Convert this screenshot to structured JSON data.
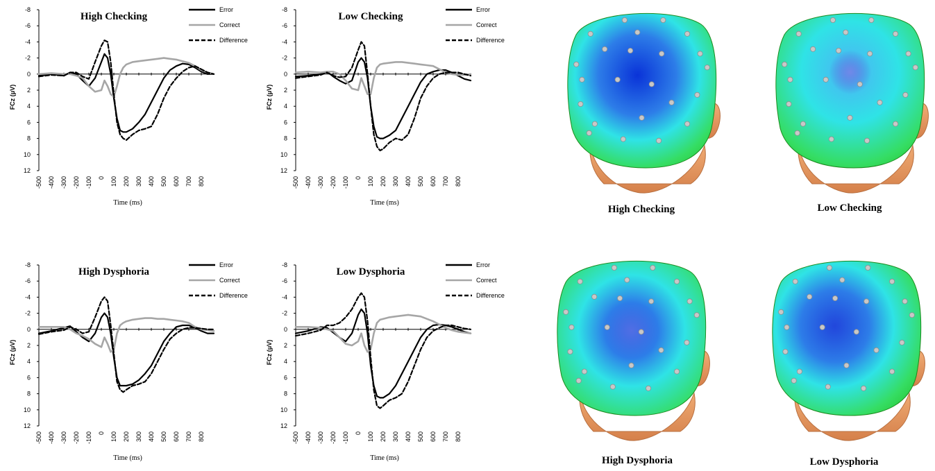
{
  "chart_data": [
    {
      "type": "line",
      "title": "High Checking",
      "xlabel": "Time (ms)",
      "ylabel": "FCz (μV)",
      "xlim": [
        -500,
        900
      ],
      "ylim": [
        -8,
        12
      ],
      "y_inverted": true,
      "x_ticks": [
        -500,
        -400,
        -300,
        -200,
        -100,
        0,
        100,
        200,
        300,
        400,
        500,
        600,
        700,
        800
      ],
      "y_ticks": [
        -8,
        -6,
        -4,
        -2,
        0,
        2,
        4,
        6,
        8,
        10,
        12
      ],
      "legend": "top-right",
      "series": [
        {
          "name": "Error",
          "color": "#000000",
          "style": "solid",
          "x": [
            -500,
            -400,
            -300,
            -250,
            -200,
            -150,
            -100,
            -50,
            0,
            25,
            50,
            75,
            100,
            125,
            150,
            175,
            200,
            250,
            300,
            350,
            400,
            450,
            500,
            550,
            600,
            650,
            700,
            750,
            800,
            850,
            900
          ],
          "y": [
            0.2,
            0,
            0.2,
            -0.2,
            0,
            0.8,
            1.5,
            0.5,
            -1.5,
            -2.5,
            -2,
            0,
            3,
            5.5,
            7,
            7.2,
            7.2,
            6.8,
            6,
            5,
            3.5,
            2,
            0.5,
            -0.5,
            -1,
            -1.3,
            -1.2,
            -0.8,
            -0.3,
            0,
            0
          ]
        },
        {
          "name": "Correct",
          "color": "#a6a6a6",
          "style": "solid",
          "x": [
            -500,
            -400,
            -300,
            -250,
            -200,
            -150,
            -100,
            -50,
            0,
            25,
            50,
            75,
            100,
            125,
            150,
            175,
            200,
            250,
            300,
            350,
            400,
            450,
            500,
            550,
            600,
            650,
            700,
            750,
            800,
            850,
            900
          ],
          "y": [
            0,
            -0.1,
            0,
            0,
            0.2,
            0.5,
            1.5,
            2.2,
            2,
            0.8,
            1.5,
            2.5,
            2.8,
            1.5,
            0,
            -0.8,
            -1.2,
            -1.5,
            -1.6,
            -1.7,
            -1.8,
            -1.9,
            -2,
            -1.9,
            -1.8,
            -1.6,
            -1.4,
            -1,
            -0.5,
            -0.2,
            0
          ]
        },
        {
          "name": "Difference",
          "color": "#000000",
          "style": "dashed",
          "x": [
            -500,
            -400,
            -300,
            -250,
            -200,
            -150,
            -100,
            -50,
            0,
            25,
            50,
            75,
            100,
            125,
            150,
            175,
            200,
            250,
            300,
            350,
            400,
            450,
            500,
            550,
            600,
            650,
            700,
            750,
            800,
            850,
            900
          ],
          "y": [
            0.3,
            0.1,
            0.2,
            -0.2,
            -0.2,
            0.3,
            0.6,
            -1.5,
            -3.5,
            -4.2,
            -4,
            -1.5,
            2.5,
            6,
            7.5,
            8,
            8.2,
            7.5,
            7,
            6.8,
            6.5,
            5,
            3,
            1.5,
            0.5,
            -0.3,
            -0.8,
            -1,
            -0.6,
            -0.2,
            0
          ]
        }
      ]
    },
    {
      "type": "line",
      "title": "Low Checking",
      "xlabel": "Time (ms)",
      "ylabel": "FCz (μV)",
      "xlim": [
        -500,
        900
      ],
      "ylim": [
        -8,
        12
      ],
      "y_inverted": true,
      "x_ticks": [
        -500,
        -400,
        -300,
        -200,
        -100,
        0,
        100,
        200,
        300,
        400,
        500,
        600,
        700,
        800
      ],
      "y_ticks": [
        -8,
        -6,
        -4,
        -2,
        0,
        2,
        4,
        6,
        8,
        10,
        12
      ],
      "legend": "top-right",
      "series": [
        {
          "name": "Error",
          "color": "#000000",
          "style": "solid",
          "x": [
            -500,
            -400,
            -300,
            -250,
            -200,
            -150,
            -100,
            -50,
            0,
            25,
            50,
            75,
            100,
            125,
            150,
            175,
            200,
            250,
            300,
            350,
            400,
            450,
            500,
            550,
            600,
            650,
            700,
            750,
            800,
            850,
            900
          ],
          "y": [
            0.3,
            0.2,
            0,
            -0.3,
            0.3,
            0.8,
            1.2,
            0.8,
            -1.5,
            -2,
            -1.5,
            0.5,
            4,
            6.5,
            7.8,
            8,
            8,
            7.6,
            7,
            5.5,
            4,
            2.5,
            1,
            0,
            -0.3,
            -0.5,
            -0.5,
            -0.2,
            0.2,
            0.6,
            0.8
          ]
        },
        {
          "name": "Correct",
          "color": "#a6a6a6",
          "style": "solid",
          "x": [
            -500,
            -400,
            -300,
            -250,
            -200,
            -150,
            -100,
            -50,
            0,
            25,
            50,
            75,
            100,
            125,
            150,
            175,
            200,
            250,
            300,
            350,
            400,
            450,
            500,
            550,
            600,
            650,
            700,
            750,
            800,
            850,
            900
          ],
          "y": [
            -0.2,
            -0.3,
            -0.2,
            -0.3,
            -0.3,
            0,
            0.8,
            1.8,
            2,
            0.5,
            1.5,
            2.5,
            2.5,
            0.5,
            -0.8,
            -1.2,
            -1.3,
            -1.4,
            -1.5,
            -1.5,
            -1.4,
            -1.3,
            -1.2,
            -1.1,
            -1,
            -0.6,
            -0.2,
            0,
            0.1,
            0.1,
            0
          ]
        },
        {
          "name": "Difference",
          "color": "#000000",
          "style": "dashed",
          "x": [
            -500,
            -400,
            -300,
            -250,
            -200,
            -150,
            -100,
            -50,
            0,
            25,
            50,
            75,
            100,
            125,
            150,
            175,
            200,
            250,
            300,
            350,
            400,
            450,
            500,
            550,
            600,
            650,
            700,
            750,
            800,
            850,
            900
          ],
          "y": [
            0.5,
            0.3,
            0.1,
            -0.2,
            0.2,
            0.4,
            0.3,
            -0.8,
            -3,
            -4,
            -3.5,
            0,
            4,
            7.5,
            9,
            9.5,
            9.3,
            8.5,
            8,
            8.2,
            7.5,
            5.5,
            3,
            1.5,
            0.5,
            0,
            -0.2,
            -0.2,
            -0.2,
            0,
            0.2
          ]
        }
      ]
    },
    {
      "type": "line",
      "title": "High Dysphoria",
      "xlabel": "Time (ms)",
      "ylabel": "FCz (μV)",
      "xlim": [
        -500,
        900
      ],
      "ylim": [
        -8,
        12
      ],
      "y_inverted": true,
      "x_ticks": [
        -500,
        -400,
        -300,
        -200,
        -100,
        0,
        100,
        200,
        300,
        400,
        500,
        600,
        700,
        800
      ],
      "y_ticks": [
        -8,
        -6,
        -4,
        -2,
        0,
        2,
        4,
        6,
        8,
        10,
        12
      ],
      "legend": "top-right",
      "series": [
        {
          "name": "Error",
          "color": "#000000",
          "style": "solid",
          "x": [
            -500,
            -400,
            -300,
            -250,
            -200,
            -150,
            -100,
            -50,
            0,
            25,
            50,
            75,
            100,
            125,
            150,
            175,
            200,
            250,
            300,
            350,
            400,
            450,
            500,
            550,
            600,
            650,
            700,
            750,
            800,
            850,
            900
          ],
          "y": [
            0.5,
            0.2,
            -0.2,
            -0.4,
            0.3,
            1,
            1.5,
            0.5,
            -1.5,
            -2,
            -1.5,
            0.5,
            3.5,
            6,
            7,
            7,
            7,
            6.8,
            6.3,
            5.5,
            4.5,
            3,
            1.5,
            0.5,
            -0.3,
            -0.5,
            -0.5,
            -0.2,
            0.2,
            0.5,
            0.5
          ]
        },
        {
          "name": "Correct",
          "color": "#a6a6a6",
          "style": "solid",
          "x": [
            -500,
            -400,
            -300,
            -250,
            -200,
            -150,
            -100,
            -50,
            0,
            25,
            50,
            75,
            100,
            125,
            150,
            175,
            200,
            250,
            300,
            350,
            400,
            450,
            500,
            550,
            600,
            650,
            700,
            750,
            800,
            850,
            900
          ],
          "y": [
            -0.3,
            -0.3,
            -0.3,
            0,
            0.5,
            0.8,
            1.2,
            1.8,
            2.2,
            1,
            1.8,
            2.8,
            2.5,
            0.5,
            -0.5,
            -0.8,
            -1,
            -1.2,
            -1.3,
            -1.4,
            -1.4,
            -1.3,
            -1.3,
            -1.2,
            -1.1,
            -1,
            -0.8,
            -0.3,
            0,
            0.1,
            0.2
          ]
        },
        {
          "name": "Difference",
          "color": "#000000",
          "style": "dashed",
          "x": [
            -500,
            -400,
            -300,
            -250,
            -200,
            -150,
            -100,
            -50,
            0,
            25,
            50,
            75,
            100,
            125,
            150,
            175,
            200,
            250,
            300,
            350,
            400,
            450,
            500,
            550,
            600,
            650,
            700,
            750,
            800,
            850,
            900
          ],
          "y": [
            0.6,
            0.3,
            0.1,
            -0.3,
            0,
            0.5,
            0.3,
            -1.5,
            -3.5,
            -4,
            -3.5,
            -0.5,
            3,
            6.5,
            7.5,
            7.8,
            7.5,
            7,
            6.8,
            6.5,
            5.5,
            4,
            2.5,
            1.2,
            0.5,
            0,
            -0.2,
            -0.2,
            -0.1,
            0,
            0
          ]
        }
      ]
    },
    {
      "type": "line",
      "title": "Low Dysphoria",
      "xlabel": "Time (ms)",
      "ylabel": "FCz (μV)",
      "xlim": [
        -500,
        900
      ],
      "ylim": [
        -8,
        12
      ],
      "y_inverted": true,
      "x_ticks": [
        -500,
        -400,
        -300,
        -200,
        -100,
        0,
        100,
        200,
        300,
        400,
        500,
        600,
        700,
        800
      ],
      "y_ticks": [
        -8,
        -6,
        -4,
        -2,
        0,
        2,
        4,
        6,
        8,
        10,
        12
      ],
      "legend": "top-right",
      "series": [
        {
          "name": "Error",
          "color": "#000000",
          "style": "solid",
          "x": [
            -500,
            -400,
            -300,
            -250,
            -200,
            -150,
            -100,
            -50,
            0,
            25,
            50,
            75,
            100,
            125,
            150,
            175,
            200,
            250,
            300,
            350,
            400,
            450,
            500,
            550,
            600,
            650,
            700,
            750,
            800,
            850,
            900
          ],
          "y": [
            0.5,
            0.2,
            -0.3,
            -0.2,
            0.4,
            1,
            1.5,
            0.5,
            -1.8,
            -2.5,
            -2,
            0.5,
            4.5,
            7,
            8.3,
            8.5,
            8.5,
            8,
            7,
            5.5,
            4,
            2.5,
            1,
            0,
            -0.5,
            -0.6,
            -0.5,
            -0.3,
            0,
            0.3,
            0.5
          ]
        },
        {
          "name": "Correct",
          "color": "#a6a6a6",
          "style": "solid",
          "x": [
            -500,
            -400,
            -300,
            -250,
            -200,
            -150,
            -100,
            -50,
            0,
            25,
            50,
            75,
            100,
            125,
            150,
            175,
            200,
            250,
            300,
            350,
            400,
            450,
            500,
            550,
            600,
            650,
            700,
            750,
            800,
            850,
            900
          ],
          "y": [
            -0.3,
            -0.3,
            -0.2,
            0,
            0.2,
            1,
            1.8,
            2,
            1.5,
            0.5,
            2,
            2.8,
            2.5,
            0.5,
            -0.8,
            -1.2,
            -1.3,
            -1.5,
            -1.6,
            -1.7,
            -1.8,
            -1.7,
            -1.6,
            -1.3,
            -1,
            -0.6,
            -0.2,
            0.1,
            0.3,
            0.4,
            0.5
          ]
        },
        {
          "name": "Difference",
          "color": "#000000",
          "style": "dashed",
          "x": [
            -500,
            -400,
            -300,
            -250,
            -200,
            -150,
            -100,
            -50,
            0,
            25,
            50,
            75,
            100,
            125,
            150,
            175,
            200,
            250,
            300,
            350,
            400,
            450,
            500,
            550,
            600,
            650,
            700,
            750,
            800,
            850,
            900
          ],
          "y": [
            0.8,
            0.5,
            0.1,
            -0.5,
            -0.5,
            -0.8,
            -1.5,
            -2.5,
            -4,
            -4.5,
            -4,
            -1,
            3.5,
            7.5,
            9.5,
            9.8,
            9.5,
            8.8,
            8.5,
            8,
            6.5,
            4.5,
            2.5,
            1,
            0.2,
            -0.2,
            -0.5,
            -0.5,
            -0.3,
            -0.1,
            0
          ]
        }
      ]
    }
  ],
  "topomaps": [
    {
      "caption": "High Checking",
      "negativity_strength": 1.0,
      "focus": [
        0.47,
        0.4
      ]
    },
    {
      "caption": "Low Checking",
      "negativity_strength": 0.35,
      "focus": [
        0.5,
        0.38
      ]
    },
    {
      "caption": "High Dysphoria",
      "negativity_strength": 0.55,
      "focus": [
        0.5,
        0.45
      ]
    },
    {
      "caption": "Low Dysphoria",
      "negativity_strength": 0.85,
      "focus": [
        0.42,
        0.42
      ]
    }
  ],
  "colors": {
    "error": "#000000",
    "correct": "#a6a6a6",
    "difference": "#000000",
    "scalp_green": "#27c42b",
    "scalp_cyan": "#2fe3e6",
    "scalp_blue": "#0a33d8",
    "skin": "#e79a5f",
    "electrode": "#c8c8c8"
  }
}
